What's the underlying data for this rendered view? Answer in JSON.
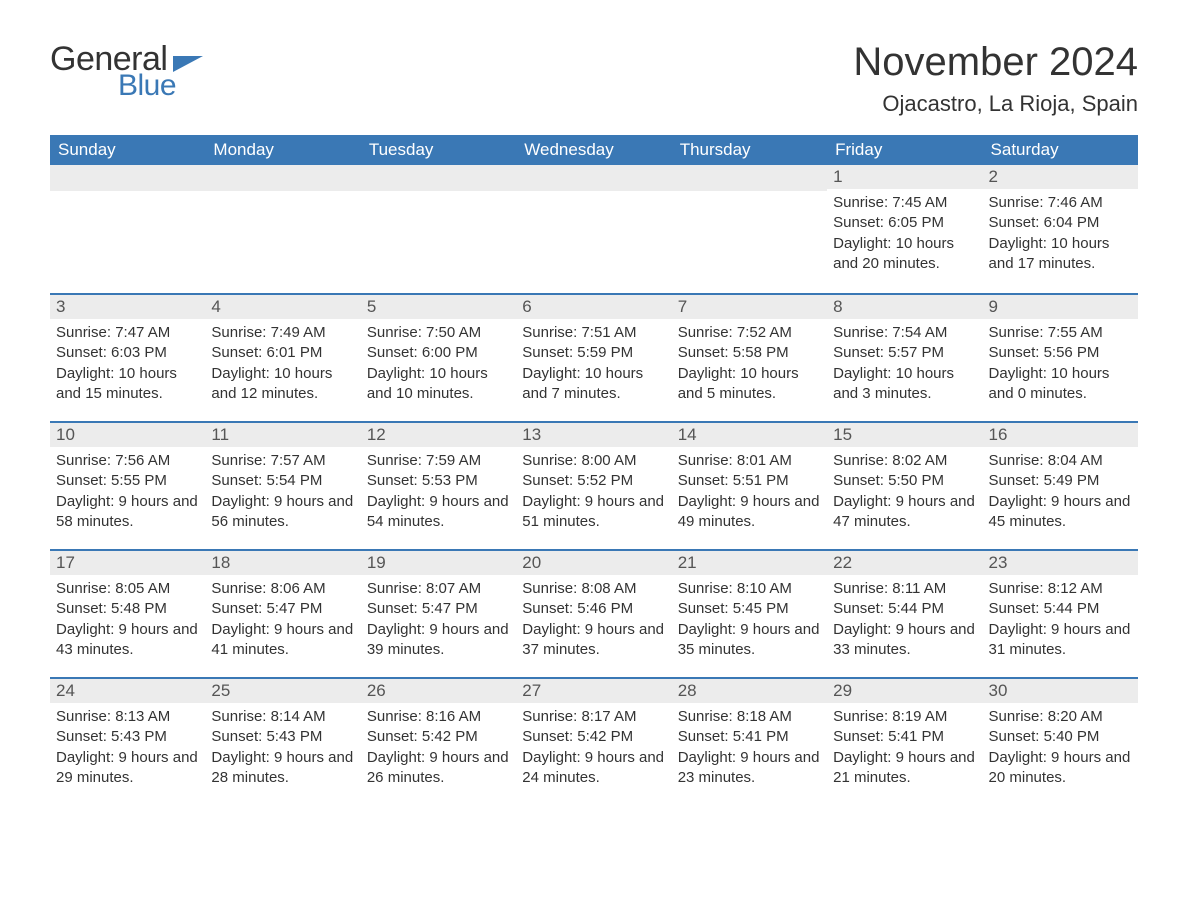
{
  "logo": {
    "part1": "General",
    "part2": "Blue"
  },
  "title": "November 2024",
  "location": "Ojacastro, La Rioja, Spain",
  "columns": [
    "Sunday",
    "Monday",
    "Tuesday",
    "Wednesday",
    "Thursday",
    "Friday",
    "Saturday"
  ],
  "colors": {
    "header_bg": "#3a78b5",
    "header_text": "#ffffff",
    "daynum_bg": "#ececec",
    "border_top": "#3a78b5",
    "text": "#333333",
    "logo_blue": "#3a78b5",
    "background": "#ffffff"
  },
  "weeks": [
    [
      {
        "empty": true
      },
      {
        "empty": true
      },
      {
        "empty": true
      },
      {
        "empty": true
      },
      {
        "empty": true
      },
      {
        "day": "1",
        "sunrise": "Sunrise: 7:45 AM",
        "sunset": "Sunset: 6:05 PM",
        "daylight": "Daylight: 10 hours and 20 minutes."
      },
      {
        "day": "2",
        "sunrise": "Sunrise: 7:46 AM",
        "sunset": "Sunset: 6:04 PM",
        "daylight": "Daylight: 10 hours and 17 minutes."
      }
    ],
    [
      {
        "day": "3",
        "sunrise": "Sunrise: 7:47 AM",
        "sunset": "Sunset: 6:03 PM",
        "daylight": "Daylight: 10 hours and 15 minutes."
      },
      {
        "day": "4",
        "sunrise": "Sunrise: 7:49 AM",
        "sunset": "Sunset: 6:01 PM",
        "daylight": "Daylight: 10 hours and 12 minutes."
      },
      {
        "day": "5",
        "sunrise": "Sunrise: 7:50 AM",
        "sunset": "Sunset: 6:00 PM",
        "daylight": "Daylight: 10 hours and 10 minutes."
      },
      {
        "day": "6",
        "sunrise": "Sunrise: 7:51 AM",
        "sunset": "Sunset: 5:59 PM",
        "daylight": "Daylight: 10 hours and 7 minutes."
      },
      {
        "day": "7",
        "sunrise": "Sunrise: 7:52 AM",
        "sunset": "Sunset: 5:58 PM",
        "daylight": "Daylight: 10 hours and 5 minutes."
      },
      {
        "day": "8",
        "sunrise": "Sunrise: 7:54 AM",
        "sunset": "Sunset: 5:57 PM",
        "daylight": "Daylight: 10 hours and 3 minutes."
      },
      {
        "day": "9",
        "sunrise": "Sunrise: 7:55 AM",
        "sunset": "Sunset: 5:56 PM",
        "daylight": "Daylight: 10 hours and 0 minutes."
      }
    ],
    [
      {
        "day": "10",
        "sunrise": "Sunrise: 7:56 AM",
        "sunset": "Sunset: 5:55 PM",
        "daylight": "Daylight: 9 hours and 58 minutes."
      },
      {
        "day": "11",
        "sunrise": "Sunrise: 7:57 AM",
        "sunset": "Sunset: 5:54 PM",
        "daylight": "Daylight: 9 hours and 56 minutes."
      },
      {
        "day": "12",
        "sunrise": "Sunrise: 7:59 AM",
        "sunset": "Sunset: 5:53 PM",
        "daylight": "Daylight: 9 hours and 54 minutes."
      },
      {
        "day": "13",
        "sunrise": "Sunrise: 8:00 AM",
        "sunset": "Sunset: 5:52 PM",
        "daylight": "Daylight: 9 hours and 51 minutes."
      },
      {
        "day": "14",
        "sunrise": "Sunrise: 8:01 AM",
        "sunset": "Sunset: 5:51 PM",
        "daylight": "Daylight: 9 hours and 49 minutes."
      },
      {
        "day": "15",
        "sunrise": "Sunrise: 8:02 AM",
        "sunset": "Sunset: 5:50 PM",
        "daylight": "Daylight: 9 hours and 47 minutes."
      },
      {
        "day": "16",
        "sunrise": "Sunrise: 8:04 AM",
        "sunset": "Sunset: 5:49 PM",
        "daylight": "Daylight: 9 hours and 45 minutes."
      }
    ],
    [
      {
        "day": "17",
        "sunrise": "Sunrise: 8:05 AM",
        "sunset": "Sunset: 5:48 PM",
        "daylight": "Daylight: 9 hours and 43 minutes."
      },
      {
        "day": "18",
        "sunrise": "Sunrise: 8:06 AM",
        "sunset": "Sunset: 5:47 PM",
        "daylight": "Daylight: 9 hours and 41 minutes."
      },
      {
        "day": "19",
        "sunrise": "Sunrise: 8:07 AM",
        "sunset": "Sunset: 5:47 PM",
        "daylight": "Daylight: 9 hours and 39 minutes."
      },
      {
        "day": "20",
        "sunrise": "Sunrise: 8:08 AM",
        "sunset": "Sunset: 5:46 PM",
        "daylight": "Daylight: 9 hours and 37 minutes."
      },
      {
        "day": "21",
        "sunrise": "Sunrise: 8:10 AM",
        "sunset": "Sunset: 5:45 PM",
        "daylight": "Daylight: 9 hours and 35 minutes."
      },
      {
        "day": "22",
        "sunrise": "Sunrise: 8:11 AM",
        "sunset": "Sunset: 5:44 PM",
        "daylight": "Daylight: 9 hours and 33 minutes."
      },
      {
        "day": "23",
        "sunrise": "Sunrise: 8:12 AM",
        "sunset": "Sunset: 5:44 PM",
        "daylight": "Daylight: 9 hours and 31 minutes."
      }
    ],
    [
      {
        "day": "24",
        "sunrise": "Sunrise: 8:13 AM",
        "sunset": "Sunset: 5:43 PM",
        "daylight": "Daylight: 9 hours and 29 minutes."
      },
      {
        "day": "25",
        "sunrise": "Sunrise: 8:14 AM",
        "sunset": "Sunset: 5:43 PM",
        "daylight": "Daylight: 9 hours and 28 minutes."
      },
      {
        "day": "26",
        "sunrise": "Sunrise: 8:16 AM",
        "sunset": "Sunset: 5:42 PM",
        "daylight": "Daylight: 9 hours and 26 minutes."
      },
      {
        "day": "27",
        "sunrise": "Sunrise: 8:17 AM",
        "sunset": "Sunset: 5:42 PM",
        "daylight": "Daylight: 9 hours and 24 minutes."
      },
      {
        "day": "28",
        "sunrise": "Sunrise: 8:18 AM",
        "sunset": "Sunset: 5:41 PM",
        "daylight": "Daylight: 9 hours and 23 minutes."
      },
      {
        "day": "29",
        "sunrise": "Sunrise: 8:19 AM",
        "sunset": "Sunset: 5:41 PM",
        "daylight": "Daylight: 9 hours and 21 minutes."
      },
      {
        "day": "30",
        "sunrise": "Sunrise: 8:20 AM",
        "sunset": "Sunset: 5:40 PM",
        "daylight": "Daylight: 9 hours and 20 minutes."
      }
    ]
  ]
}
